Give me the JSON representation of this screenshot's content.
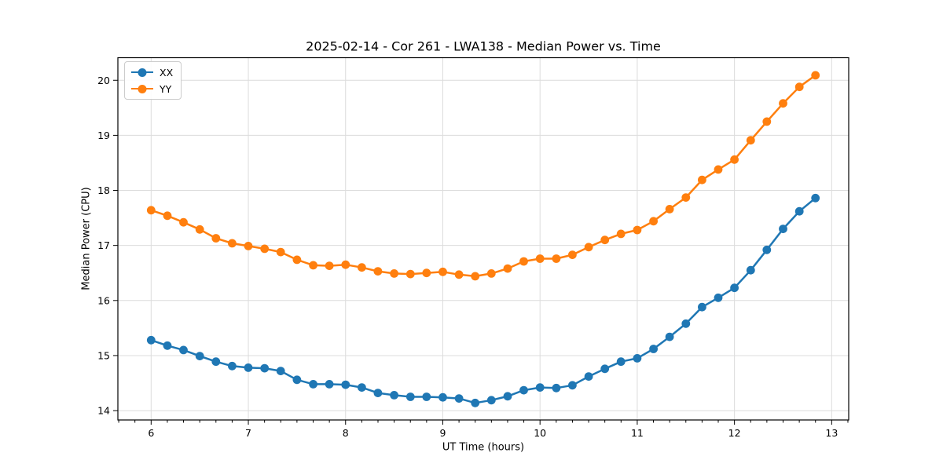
{
  "title": "2025-02-14 - Cor 261 - LWA138 - Median Power vs. Time",
  "chart_data": {
    "type": "line",
    "title": "2025-02-14 - Cor 261 - LWA138 - Median Power vs. Time",
    "xlabel": "UT Time (hours)",
    "ylabel": "Median Power (CPU)",
    "xlim": [
      5.658,
      13.175
    ],
    "ylim": [
      13.83,
      20.41
    ],
    "xticks": [
      6,
      7,
      8,
      9,
      10,
      11,
      12,
      13
    ],
    "yticks": [
      14,
      15,
      16,
      17,
      18,
      19,
      20
    ],
    "x_minor_step": 0.166667,
    "grid": true,
    "grid_color": "#dcdcdc",
    "legend_position": "upper left",
    "x": [
      6.0,
      6.167,
      6.333,
      6.5,
      6.667,
      6.833,
      7.0,
      7.167,
      7.333,
      7.5,
      7.667,
      7.833,
      8.0,
      8.167,
      8.333,
      8.5,
      8.667,
      8.833,
      9.0,
      9.167,
      9.333,
      9.5,
      9.667,
      9.833,
      10.0,
      10.167,
      10.333,
      10.5,
      10.667,
      10.833,
      11.0,
      11.167,
      11.333,
      11.5,
      11.667,
      11.833,
      12.0,
      12.167,
      12.333,
      12.5,
      12.667,
      12.833
    ],
    "series": [
      {
        "name": "XX",
        "color": "#1f77b4",
        "values": [
          15.28,
          15.18,
          15.1,
          14.99,
          14.89,
          14.81,
          14.78,
          14.77,
          14.72,
          14.56,
          14.48,
          14.48,
          14.47,
          14.42,
          14.32,
          14.28,
          14.25,
          14.25,
          14.24,
          14.22,
          14.14,
          14.19,
          14.26,
          14.37,
          14.42,
          14.41,
          14.46,
          14.62,
          14.76,
          14.89,
          14.95,
          15.12,
          15.34,
          15.58,
          15.88,
          16.05,
          16.23,
          16.55,
          16.92,
          17.3,
          17.62,
          17.86
        ]
      },
      {
        "name": "YY",
        "color": "#ff7f0e",
        "values": [
          17.64,
          17.54,
          17.42,
          17.29,
          17.13,
          17.04,
          16.99,
          16.94,
          16.88,
          16.74,
          16.64,
          16.63,
          16.65,
          16.6,
          16.53,
          16.49,
          16.48,
          16.5,
          16.52,
          16.47,
          16.44,
          16.49,
          16.58,
          16.71,
          16.76,
          16.76,
          16.83,
          16.97,
          17.1,
          17.21,
          17.28,
          17.44,
          17.66,
          17.87,
          18.19,
          18.38,
          18.56,
          18.91,
          19.25,
          19.58,
          19.88,
          20.09
        ]
      }
    ]
  }
}
